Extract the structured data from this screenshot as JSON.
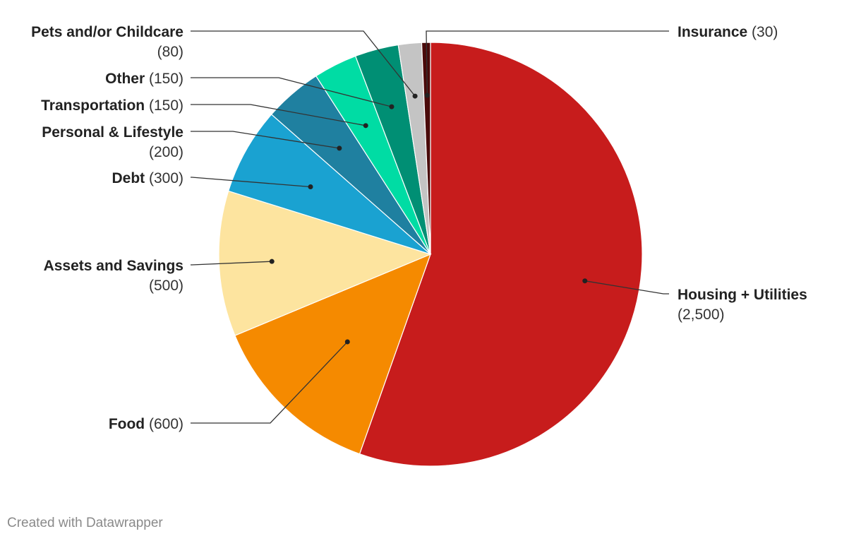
{
  "chart_data": {
    "type": "pie",
    "slices": [
      {
        "name": "Housing + Utilities",
        "value": 2500,
        "value_label": "(2,500)",
        "color": "#c71c1c"
      },
      {
        "name": "Food",
        "value": 600,
        "value_label": "(600)",
        "color": "#f58a00"
      },
      {
        "name": "Assets and Savings",
        "value": 500,
        "value_label": "(500)",
        "color": "#fde49f"
      },
      {
        "name": "Debt",
        "value": 300,
        "value_label": "(300)",
        "color": "#1aa2d1"
      },
      {
        "name": "Personal & Lifestyle",
        "value": 200,
        "value_label": "(200)",
        "color": "#1f80a0"
      },
      {
        "name": "Transportation",
        "value": 150,
        "value_label": "(150)",
        "color": "#00dca4"
      },
      {
        "name": "Other",
        "value": 150,
        "value_label": "(150)",
        "color": "#008f74"
      },
      {
        "name": "Pets and/or Childcare",
        "value": 80,
        "value_label": "(80)",
        "color": "#c4c4c4"
      },
      {
        "name": "Insurance",
        "value": 30,
        "value_label": "(30)",
        "color": "#4a0a0a"
      }
    ]
  },
  "footer": {
    "credit": "Created with Datawrapper"
  }
}
